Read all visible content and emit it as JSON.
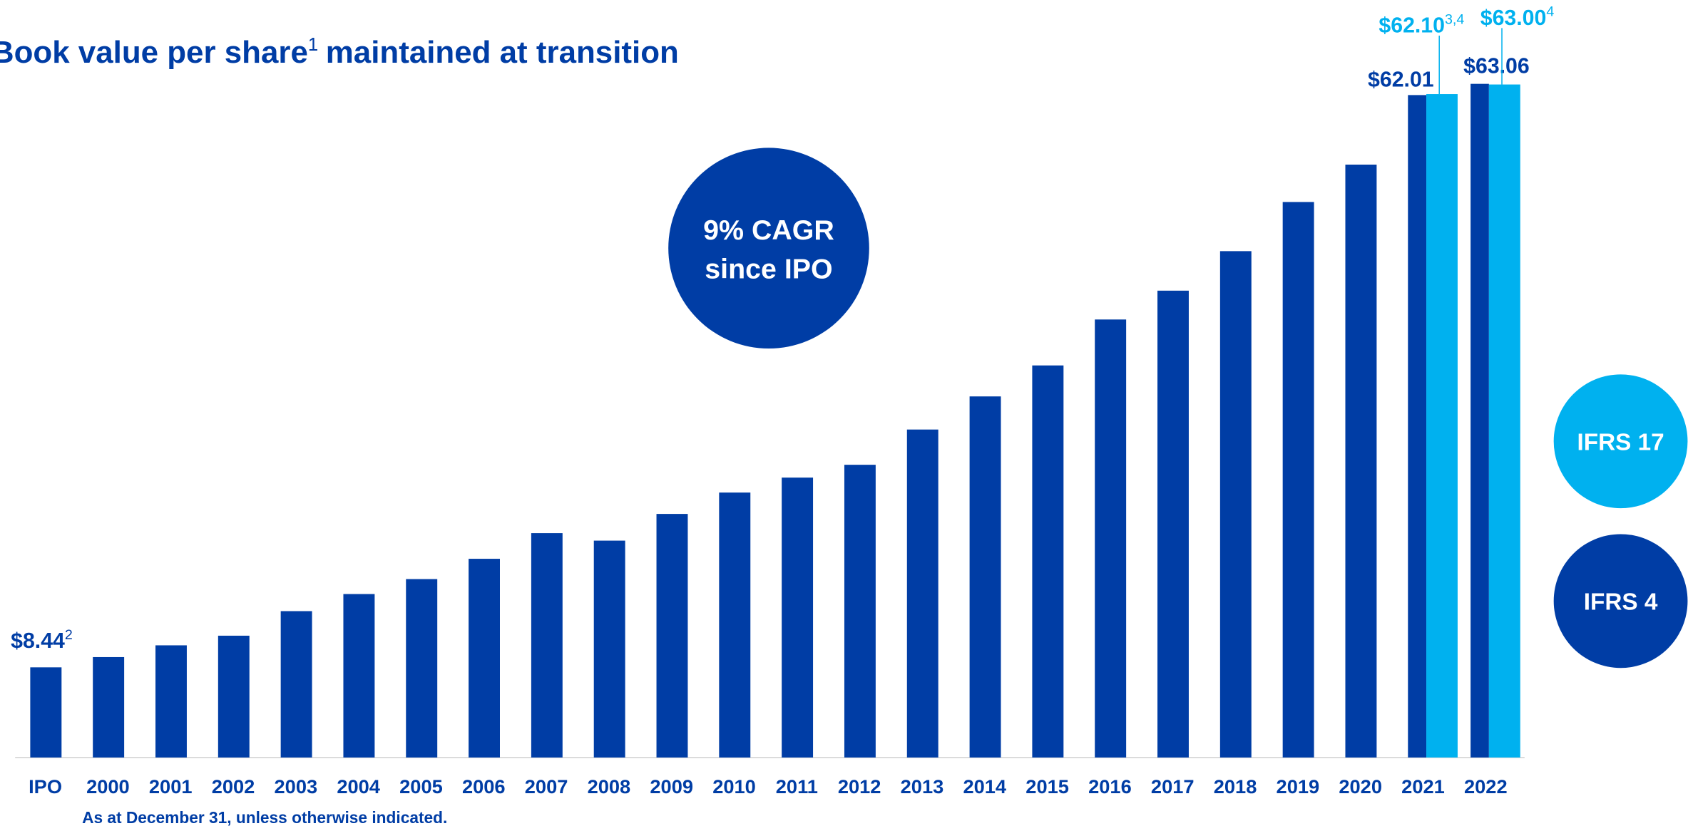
{
  "chart_data": {
    "type": "bar",
    "title": "Book value per share",
    "title_superscript": "1",
    "title_continuation": "maintained at transition",
    "annotation": [
      "9% CAGR",
      "since IPO"
    ],
    "note": "As at December 31, unless otherwise indicated.",
    "categories": [
      "IPO",
      "2000",
      "2001",
      "2002",
      "2003",
      "2004",
      "2005",
      "2006",
      "2007",
      "2008",
      "2009",
      "2010",
      "2011",
      "2012",
      "2013",
      "2014",
      "2015",
      "2016",
      "2017",
      "2018",
      "2019",
      "2020",
      "2021",
      "2022"
    ],
    "ylim": [
      0,
      70
    ],
    "series": [
      {
        "name": "IFRS 4",
        "color": "#003da5",
        "values": [
          8.44,
          9.4,
          10.5,
          11.4,
          13.7,
          15.3,
          16.7,
          18.6,
          21.0,
          20.3,
          22.8,
          24.8,
          26.2,
          27.4,
          30.7,
          33.8,
          36.7,
          41.0,
          43.7,
          47.4,
          52.0,
          55.5,
          62.01,
          63.06
        ],
        "value_labels": [
          "$8.44",
          null,
          null,
          null,
          null,
          null,
          null,
          null,
          null,
          null,
          null,
          null,
          null,
          null,
          null,
          null,
          null,
          null,
          null,
          null,
          null,
          null,
          "$62.01",
          "$63.06"
        ],
        "value_label_superscripts": [
          "2",
          null,
          null,
          null,
          null,
          null,
          null,
          null,
          null,
          null,
          null,
          null,
          null,
          null,
          null,
          null,
          null,
          null,
          null,
          null,
          null,
          null,
          null,
          null
        ]
      },
      {
        "name": "IFRS 17",
        "color": "#00b1ef",
        "values": [
          null,
          null,
          null,
          null,
          null,
          null,
          null,
          null,
          null,
          null,
          null,
          null,
          null,
          null,
          null,
          null,
          null,
          null,
          null,
          null,
          null,
          null,
          62.1,
          63.0
        ],
        "value_labels": [
          null,
          null,
          null,
          null,
          null,
          null,
          null,
          null,
          null,
          null,
          null,
          null,
          null,
          null,
          null,
          null,
          null,
          null,
          null,
          null,
          null,
          null,
          "$62.10",
          "$63.00"
        ],
        "value_label_superscripts": [
          null,
          null,
          null,
          null,
          null,
          null,
          null,
          null,
          null,
          null,
          null,
          null,
          null,
          null,
          null,
          null,
          null,
          null,
          null,
          null,
          null,
          null,
          "3,4",
          "4"
        ]
      }
    ]
  }
}
